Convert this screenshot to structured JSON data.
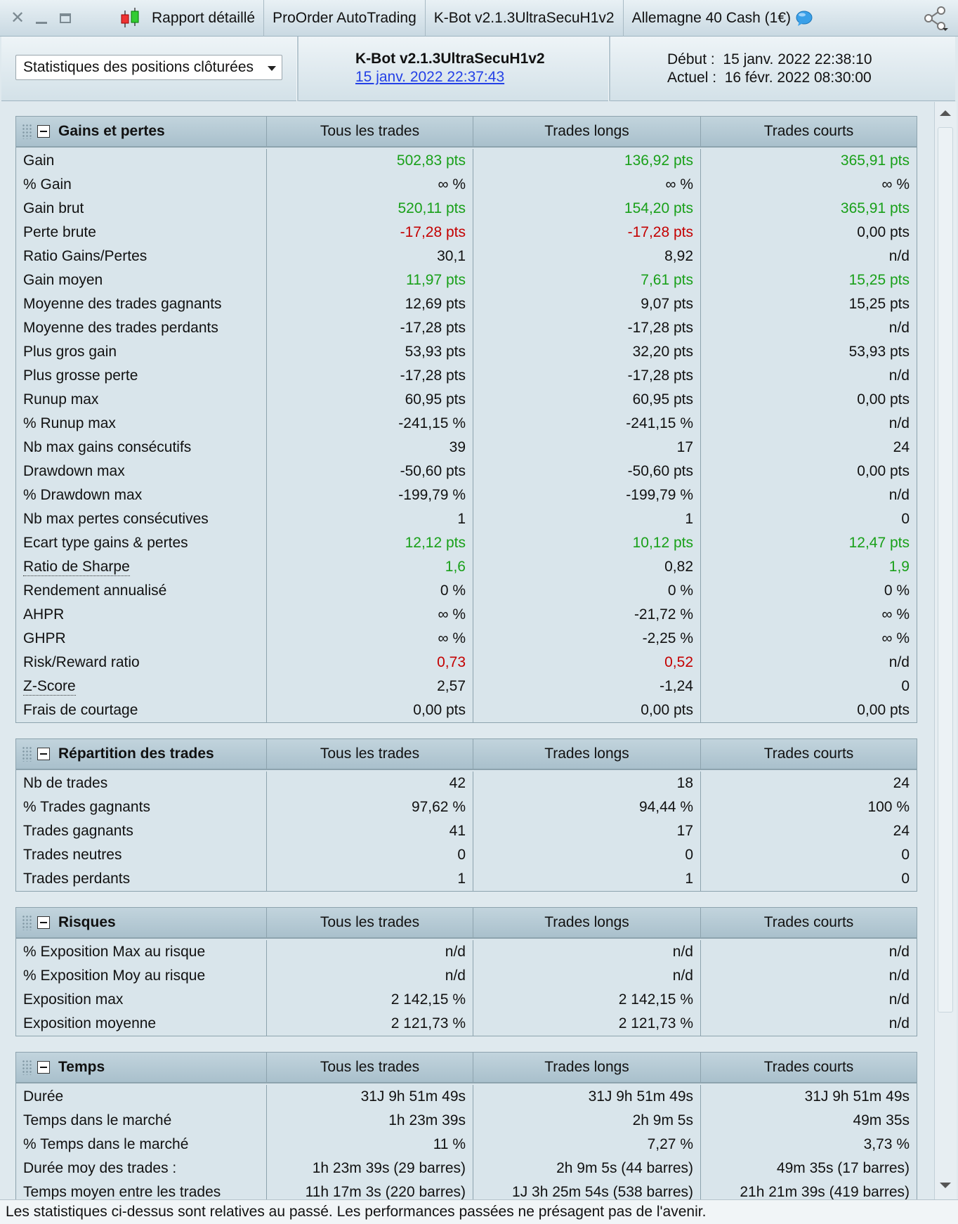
{
  "titlebar": {
    "tabs": [
      "Rapport détaillé",
      "ProOrder AutoTrading",
      "K-Bot v2.1.3UltraSecuH1v2",
      "Allemagne 40 Cash (1€)"
    ]
  },
  "header": {
    "dropdown_label": "Statistiques des positions clôturées",
    "strategy_name": "K-Bot v2.1.3UltraSecuH1v2",
    "strategy_date": "15 janv. 2022 22:37:43",
    "start_label": "Début :",
    "start_value": "15 janv. 2022 22:38:10",
    "current_label": "Actuel :",
    "current_value": "16 févr. 2022 08:30:00"
  },
  "columns": [
    "Tous les trades",
    "Trades longs",
    "Trades courts"
  ],
  "sections": [
    {
      "title": "Gains et pertes",
      "rows": [
        {
          "label": "Gain",
          "values": [
            "502,83 pts",
            "136,92 pts",
            "365,91 pts"
          ],
          "colors": [
            "g",
            "g",
            "g"
          ]
        },
        {
          "label": "% Gain",
          "values": [
            "∞ %",
            "∞ %",
            "∞ %"
          ],
          "colors": [
            "",
            "",
            ""
          ]
        },
        {
          "label": "Gain brut",
          "values": [
            "520,11 pts",
            "154,20 pts",
            "365,91 pts"
          ],
          "colors": [
            "g",
            "g",
            "g"
          ]
        },
        {
          "label": "Perte brute",
          "values": [
            "-17,28 pts",
            "-17,28 pts",
            "0,00 pts"
          ],
          "colors": [
            "r",
            "r",
            ""
          ]
        },
        {
          "label": "Ratio Gains/Pertes",
          "values": [
            "30,1",
            "8,92",
            "n/d"
          ],
          "colors": [
            "",
            "",
            ""
          ]
        },
        {
          "label": "Gain moyen",
          "values": [
            "11,97 pts",
            "7,61 pts",
            "15,25 pts"
          ],
          "colors": [
            "g",
            "g",
            "g"
          ]
        },
        {
          "label": "Moyenne des trades gagnants",
          "values": [
            "12,69 pts",
            "9,07 pts",
            "15,25 pts"
          ],
          "colors": [
            "",
            "",
            ""
          ]
        },
        {
          "label": "Moyenne des trades perdants",
          "values": [
            "-17,28 pts",
            "-17,28 pts",
            "n/d"
          ],
          "colors": [
            "",
            "",
            ""
          ]
        },
        {
          "label": "Plus gros gain",
          "values": [
            "53,93 pts",
            "32,20 pts",
            "53,93 pts"
          ],
          "colors": [
            "",
            "",
            ""
          ]
        },
        {
          "label": "Plus grosse perte",
          "values": [
            "-17,28 pts",
            "-17,28 pts",
            "n/d"
          ],
          "colors": [
            "",
            "",
            ""
          ]
        },
        {
          "label": "Runup max",
          "values": [
            "60,95 pts",
            "60,95 pts",
            "0,00 pts"
          ],
          "colors": [
            "",
            "",
            ""
          ]
        },
        {
          "label": "% Runup max",
          "values": [
            "-241,15 %",
            "-241,15 %",
            "n/d"
          ],
          "colors": [
            "",
            "",
            ""
          ]
        },
        {
          "label": "Nb max gains consécutifs",
          "values": [
            "39",
            "17",
            "24"
          ],
          "colors": [
            "",
            "",
            ""
          ]
        },
        {
          "label": "Drawdown max",
          "values": [
            "-50,60 pts",
            "-50,60 pts",
            "0,00 pts"
          ],
          "colors": [
            "",
            "",
            ""
          ]
        },
        {
          "label": "% Drawdown max",
          "values": [
            "-199,79 %",
            "-199,79 %",
            "n/d"
          ],
          "colors": [
            "",
            "",
            ""
          ]
        },
        {
          "label": "Nb max pertes consécutives",
          "values": [
            "1",
            "1",
            "0"
          ],
          "colors": [
            "",
            "",
            ""
          ]
        },
        {
          "label": "Ecart type gains & pertes",
          "values": [
            "12,12 pts",
            "10,12 pts",
            "12,47 pts"
          ],
          "colors": [
            "g",
            "g",
            "g"
          ]
        },
        {
          "label": "Ratio de Sharpe",
          "values": [
            "1,6",
            "0,82",
            "1,9"
          ],
          "colors": [
            "g",
            "",
            "g"
          ],
          "dotted": true
        },
        {
          "label": "Rendement annualisé",
          "values": [
            "0 %",
            "0 %",
            "0 %"
          ],
          "colors": [
            "",
            "",
            ""
          ]
        },
        {
          "label": "AHPR",
          "values": [
            "∞ %",
            "-21,72 %",
            "∞ %"
          ],
          "colors": [
            "",
            "",
            ""
          ]
        },
        {
          "label": "GHPR",
          "values": [
            "∞ %",
            "-2,25 %",
            "∞ %"
          ],
          "colors": [
            "",
            "",
            ""
          ]
        },
        {
          "label": "Risk/Reward ratio",
          "values": [
            "0,73",
            "0,52",
            "n/d"
          ],
          "colors": [
            "r",
            "r",
            ""
          ]
        },
        {
          "label": "Z-Score",
          "values": [
            "2,57",
            "-1,24",
            "0"
          ],
          "colors": [
            "",
            "",
            ""
          ],
          "dotted": true
        },
        {
          "label": "Frais de courtage",
          "values": [
            "0,00 pts",
            "0,00 pts",
            "0,00 pts"
          ],
          "colors": [
            "",
            "",
            ""
          ]
        }
      ]
    },
    {
      "title": "Répartition des trades",
      "rows": [
        {
          "label": "Nb de trades",
          "values": [
            "42",
            "18",
            "24"
          ],
          "colors": [
            "",
            "",
            ""
          ]
        },
        {
          "label": "% Trades gagnants",
          "values": [
            "97,62 %",
            "94,44 %",
            "100 %"
          ],
          "colors": [
            "",
            "",
            ""
          ]
        },
        {
          "label": "Trades gagnants",
          "values": [
            "41",
            "17",
            "24"
          ],
          "colors": [
            "",
            "",
            ""
          ]
        },
        {
          "label": "Trades neutres",
          "values": [
            "0",
            "0",
            "0"
          ],
          "colors": [
            "",
            "",
            ""
          ]
        },
        {
          "label": "Trades perdants",
          "values": [
            "1",
            "1",
            "0"
          ],
          "colors": [
            "",
            "",
            ""
          ]
        }
      ]
    },
    {
      "title": "Risques",
      "rows": [
        {
          "label": "% Exposition Max au risque",
          "values": [
            "n/d",
            "n/d",
            "n/d"
          ],
          "colors": [
            "",
            "",
            ""
          ]
        },
        {
          "label": "% Exposition Moy au risque",
          "values": [
            "n/d",
            "n/d",
            "n/d"
          ],
          "colors": [
            "",
            "",
            ""
          ]
        },
        {
          "label": "Exposition max",
          "values": [
            "2 142,15 %",
            "2 142,15 %",
            "n/d"
          ],
          "colors": [
            "",
            "",
            ""
          ]
        },
        {
          "label": "Exposition moyenne",
          "values": [
            "2 121,73 %",
            "2 121,73 %",
            "n/d"
          ],
          "colors": [
            "",
            "",
            ""
          ]
        }
      ]
    },
    {
      "title": "Temps",
      "rows": [
        {
          "label": "Durée",
          "values": [
            "31J 9h 51m 49s",
            "31J 9h 51m 49s",
            "31J 9h 51m 49s"
          ],
          "colors": [
            "",
            "",
            ""
          ]
        },
        {
          "label": "Temps dans le marché",
          "values": [
            "1h 23m 39s",
            "2h 9m 5s",
            "49m 35s"
          ],
          "colors": [
            "",
            "",
            ""
          ]
        },
        {
          "label": "% Temps dans le marché",
          "values": [
            "11 %",
            "7,27 %",
            "3,73 %"
          ],
          "colors": [
            "",
            "",
            ""
          ]
        },
        {
          "label": "Durée moy des trades :",
          "values": [
            "1h 23m 39s (29 barres)",
            "2h 9m 5s (44 barres)",
            "49m 35s (17 barres)"
          ],
          "colors": [
            "",
            "",
            ""
          ]
        },
        {
          "label": "Temps moyen entre les trades",
          "values": [
            "11h 17m 3s (220 barres)",
            "1J 3h 25m 54s (538 barres)",
            "21h 21m 39s (419 barres)"
          ],
          "colors": [
            "",
            "",
            ""
          ]
        }
      ]
    }
  ],
  "footer": "Les statistiques ci-dessus sont relatives au passé. Les performances passées ne présagent pas de l'avenir."
}
